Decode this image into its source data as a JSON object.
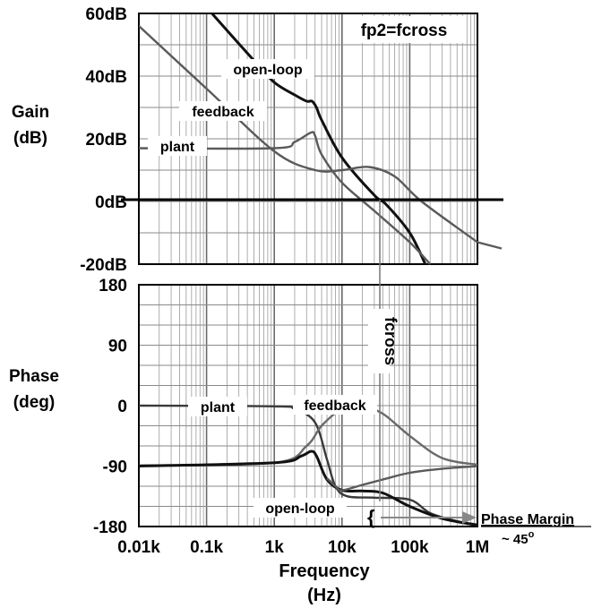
{
  "chart_data": [
    {
      "type": "line",
      "title": "fp2=fcross",
      "ylabel": "Gain\n(dB)",
      "xscale": "log",
      "xlim": [
        10,
        1000000
      ],
      "ylim": [
        -20,
        60
      ],
      "yticks": [
        "60dB",
        "40dB",
        "20dB",
        "0dB",
        "-20dB"
      ],
      "ytick_values": [
        60,
        40,
        20,
        0,
        -20
      ],
      "grid": true,
      "series": [
        {
          "name": "open-loop",
          "color": "#111111",
          "points": [
            [
              120,
              60
            ],
            [
              500,
              45
            ],
            [
              1000,
              38
            ],
            [
              2000,
              34
            ],
            [
              3000,
              32
            ],
            [
              3600,
              32
            ],
            [
              4200,
              30
            ],
            [
              5000,
              26
            ],
            [
              10000,
              14
            ],
            [
              30000,
              2
            ],
            [
              45000,
              -1
            ],
            [
              100000,
              -10
            ],
            [
              170000,
              -20
            ]
          ]
        },
        {
          "name": "feedback",
          "color": "#5a5a5a",
          "points": [
            [
              10,
              56
            ],
            [
              100,
              36
            ],
            [
              1000,
              16
            ],
            [
              4000,
              10
            ],
            [
              10000,
              10
            ],
            [
              25000,
              11
            ],
            [
              60000,
              8
            ],
            [
              150000,
              0
            ],
            [
              1000000,
              -13
            ]
          ]
        },
        {
          "name": "plant",
          "color": "#5a5a5a",
          "points": [
            [
              10,
              17
            ],
            [
              1000,
              17
            ],
            [
              2000,
              19
            ],
            [
              3500,
              22
            ],
            [
              4000,
              21
            ],
            [
              5000,
              15
            ],
            [
              10000,
              6
            ],
            [
              30000,
              -3
            ],
            [
              100000,
              -13
            ],
            [
              200000,
              -20
            ]
          ]
        }
      ],
      "annotations": {
        "zero_line": 0
      }
    },
    {
      "type": "line",
      "ylabel": "Phase\n(deg)",
      "xlabel": "Frequency\n(Hz)",
      "xscale": "log",
      "xlim": [
        10,
        1000000
      ],
      "ylim": [
        -180,
        180
      ],
      "yticks": [
        "180",
        "90",
        "0",
        "-90",
        "-180"
      ],
      "ytick_values": [
        180,
        90,
        0,
        -90,
        -180
      ],
      "xticks": [
        "0.01k",
        "0.1k",
        "1k",
        "10k",
        "100k",
        "1M"
      ],
      "xtick_values": [
        10,
        100,
        1000,
        10000,
        100000,
        1000000
      ],
      "grid": true,
      "series": [
        {
          "name": "plant",
          "color": "#3a3a3a",
          "points": [
            [
              10,
              0
            ],
            [
              1000,
              -1
            ],
            [
              2000,
              -5
            ],
            [
              4000,
              -25
            ],
            [
              6000,
              -80
            ],
            [
              8000,
              -120
            ],
            [
              12000,
              -135
            ],
            [
              30000,
              -137
            ],
            [
              100000,
              -140
            ],
            [
              200000,
              -160
            ],
            [
              500000,
              -172
            ],
            [
              1000000,
              -177
            ]
          ]
        },
        {
          "name": "feedback",
          "color": "#6a6a6a",
          "points": [
            [
              10,
              -89
            ],
            [
              1000,
              -85
            ],
            [
              3000,
              -60
            ],
            [
              5000,
              -30
            ],
            [
              10000,
              -5
            ],
            [
              20000,
              -2
            ],
            [
              40000,
              -12
            ],
            [
              100000,
              -45
            ],
            [
              300000,
              -78
            ],
            [
              1000000,
              -88
            ]
          ]
        },
        {
          "name": "open-loop",
          "color": "#111111",
          "points": [
            [
              10,
              -90
            ],
            [
              1000,
              -85
            ],
            [
              2500,
              -75
            ],
            [
              3500,
              -68
            ],
            [
              4200,
              -75
            ],
            [
              6000,
              -110
            ],
            [
              10000,
              -126
            ],
            [
              20000,
              -127
            ],
            [
              40000,
              -130
            ],
            [
              100000,
              -150
            ],
            [
              300000,
              -168
            ],
            [
              1000000,
              -178
            ]
          ]
        },
        {
          "name": "open-loop (lower branch)",
          "color": "#5a5a5a",
          "points": [
            [
              6000,
              -108
            ],
            [
              8000,
              -120
            ],
            [
              10000,
              -126
            ],
            [
              20000,
              -118
            ],
            [
              40000,
              -110
            ],
            [
              100000,
              -100
            ],
            [
              300000,
              -94
            ],
            [
              1000000,
              -90
            ]
          ]
        }
      ],
      "annotations": {
        "fcross_label": "fcross",
        "phase_margin_label": "Phase Margin",
        "phase_margin_value": "~ 45°"
      }
    }
  ],
  "text": {
    "fcross": "fcross",
    "phase_margin": "Phase Margin",
    "pm_value": "~ 45",
    "pm_degree": "o",
    "brace": "{",
    "gain_label_1": "Gain",
    "gain_label_2": "(dB)",
    "phase_label_1": "Phase",
    "phase_label_2": "(deg)",
    "freq_label_1": "Frequency",
    "freq_label_2": "(Hz)",
    "gain_series_labels": [
      "open-loop",
      "feedback",
      "plant"
    ],
    "phase_series_labels": [
      "plant",
      "feedback",
      "open-loop"
    ]
  }
}
